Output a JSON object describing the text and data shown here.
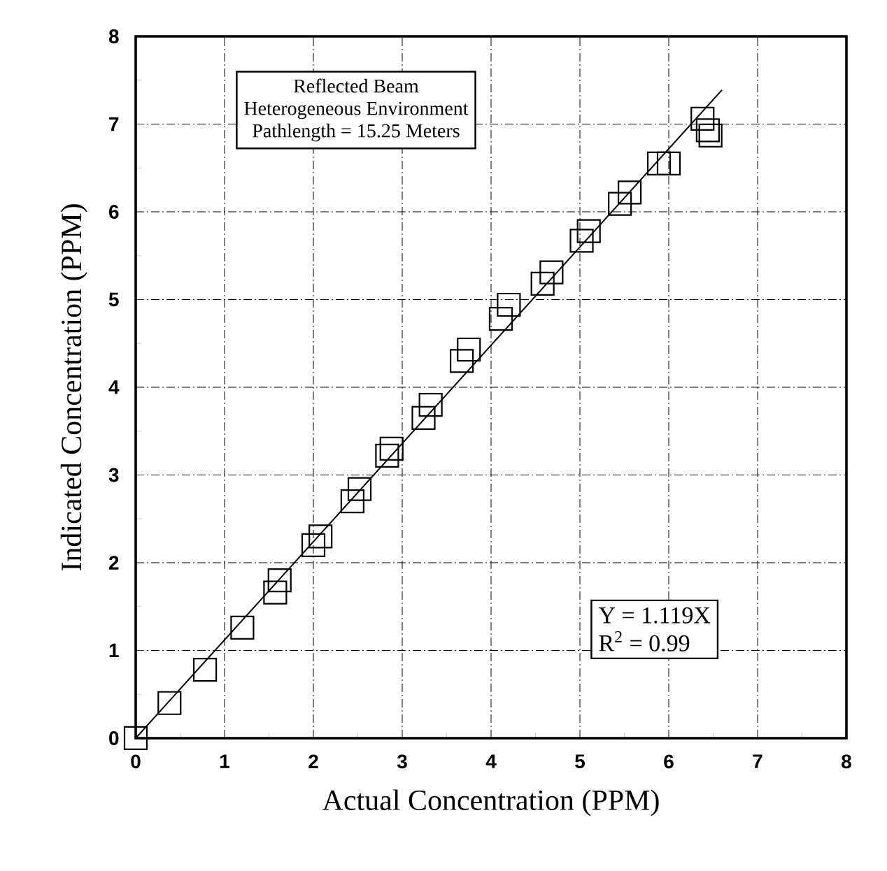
{
  "chart_data": {
    "type": "scatter",
    "xlabel": "Actual Concentration (PPM)",
    "ylabel": "Indicated Concentration (PPM)",
    "xlim": [
      0,
      8
    ],
    "ylim": [
      0,
      8
    ],
    "xticks": [
      0,
      1,
      2,
      3,
      4,
      5,
      6,
      7,
      8
    ],
    "yticks": [
      0,
      1,
      2,
      3,
      4,
      5,
      6,
      7,
      8
    ],
    "grid": true,
    "marker": "square",
    "annotations": [
      "Reflected Beam",
      "Heterogeneous Environment",
      "Pathlength = 15.25 Meters",
      "Y = 1.119X",
      "R$^{2}$ = 0.99"
    ],
    "series": [
      {
        "color": "#000000",
        "x": [
          0,
          0.38,
          0.78,
          1.2,
          1.57,
          1.62,
          2.0,
          2.08,
          2.44,
          2.52,
          2.83,
          2.88,
          3.24,
          3.32,
          3.67,
          3.75,
          4.11,
          4.2,
          4.58,
          4.68,
          5.02,
          5.1,
          5.45,
          5.56,
          5.89,
          6.0,
          6.38,
          6.44,
          6.47
        ],
        "values": [
          0,
          0.4,
          0.78,
          1.26,
          1.66,
          1.8,
          2.2,
          2.3,
          2.7,
          2.84,
          3.22,
          3.3,
          3.65,
          3.8,
          4.3,
          4.43,
          4.78,
          4.94,
          5.18,
          5.31,
          5.67,
          5.78,
          6.09,
          6.22,
          6.55,
          6.55,
          7.06,
          6.93,
          6.87
        ]
      },
      {
        "type": "line",
        "color": "#000000",
        "marker": "none",
        "line_style": "solid",
        "x": [
          0,
          6.6
        ],
        "values": [
          0,
          7.39
        ]
      }
    ]
  }
}
